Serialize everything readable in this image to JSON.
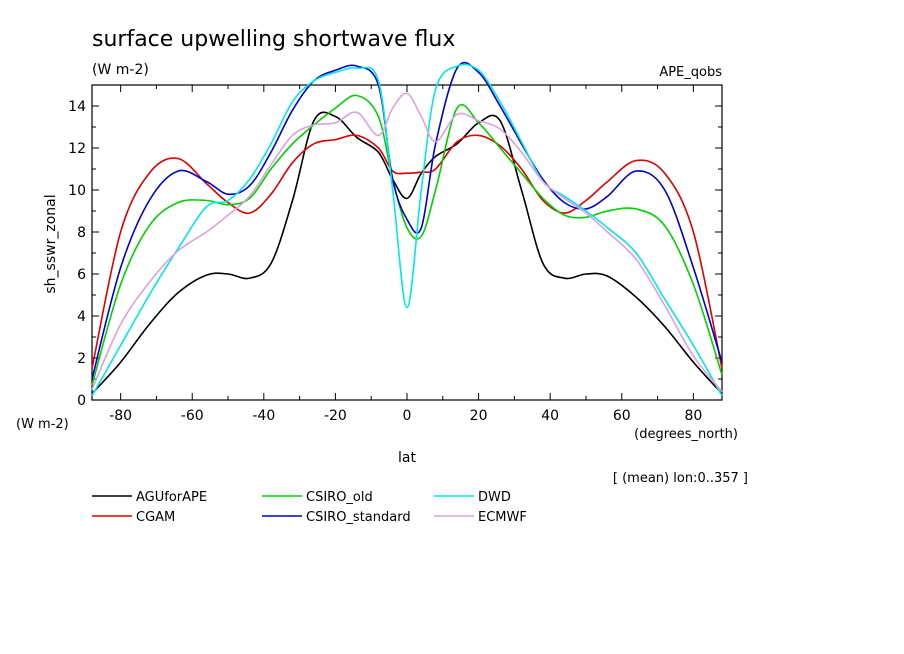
{
  "chart_data": {
    "type": "line",
    "title": "surface upwelling shortwave flux",
    "units": "(W m-2)",
    "run_label": "APE_qobs",
    "ylabel": "sh_sswr_zonal",
    "y_units": "(W m-2)",
    "xlabel": "lat",
    "x_units": "(degrees_north)",
    "footnote": "[ (mean) lon:0..357 ]",
    "xlim": [
      -88,
      88
    ],
    "ylim": [
      0,
      15
    ],
    "xticks": [
      -80,
      -60,
      -40,
      -20,
      0,
      20,
      40,
      60,
      80
    ],
    "yticks": [
      0,
      2,
      4,
      6,
      8,
      10,
      12,
      14
    ],
    "x": [
      -88,
      -80,
      -72,
      -64,
      -56,
      -50,
      -44,
      -38,
      -32,
      -26,
      -20,
      -14,
      -8,
      -4,
      0,
      4,
      8,
      14,
      20,
      26,
      32,
      38,
      44,
      50,
      56,
      64,
      72,
      80,
      88
    ],
    "series": [
      {
        "name": "AGUforAPE",
        "color": "#000000",
        "values": [
          0.3,
          1.8,
          3.6,
          5.1,
          5.95,
          6.0,
          5.8,
          6.5,
          9.5,
          13.3,
          13.5,
          12.5,
          11.8,
          10.5,
          9.6,
          10.8,
          11.6,
          12.2,
          13.2,
          13.3,
          10.0,
          6.5,
          5.8,
          6.0,
          5.9,
          4.9,
          3.5,
          1.8,
          0.3
        ]
      },
      {
        "name": "CGAM",
        "color": "#e00000",
        "values": [
          1.5,
          8.0,
          10.8,
          11.5,
          10.3,
          9.4,
          8.9,
          9.8,
          11.3,
          12.2,
          12.4,
          12.6,
          12.0,
          10.9,
          10.8,
          10.85,
          11.0,
          12.3,
          12.6,
          12.1,
          11.0,
          9.5,
          8.9,
          9.5,
          10.4,
          11.4,
          10.8,
          8.0,
          1.5
        ]
      },
      {
        "name": "CSIRO_old",
        "color": "#00d000",
        "values": [
          0.7,
          5.5,
          8.3,
          9.4,
          9.5,
          9.3,
          9.6,
          11.0,
          12.2,
          13.1,
          13.9,
          14.5,
          13.5,
          10.5,
          8.2,
          7.8,
          10.0,
          13.9,
          13.2,
          12.0,
          10.8,
          9.6,
          8.8,
          8.7,
          9.0,
          9.1,
          8.3,
          5.5,
          1.2
        ]
      },
      {
        "name": "CSIRO_standard",
        "color": "#0000cc",
        "values": [
          1.0,
          6.3,
          9.5,
          10.9,
          10.4,
          9.8,
          10.2,
          11.8,
          13.8,
          15.2,
          15.7,
          15.9,
          15.0,
          10.5,
          8.6,
          8.2,
          12.2,
          15.8,
          15.6,
          14.0,
          12.2,
          10.5,
          9.4,
          9.1,
          9.7,
          10.9,
          10.0,
          6.3,
          1.8
        ]
      },
      {
        "name": "DWD",
        "color": "#00e8e8",
        "values": [
          0.2,
          2.6,
          5.0,
          7.2,
          9.2,
          9.5,
          10.5,
          12.2,
          14.2,
          15.2,
          15.6,
          15.8,
          15.2,
          10.0,
          4.4,
          10.0,
          14.8,
          15.9,
          15.7,
          14.2,
          12.3,
          10.4,
          9.7,
          9.0,
          8.2,
          7.0,
          4.8,
          2.6,
          0.2
        ]
      },
      {
        "name": "ECMWF",
        "color": "#dda0dd",
        "values": [
          0.5,
          3.6,
          5.6,
          7.1,
          8.0,
          8.8,
          9.7,
          11.2,
          12.6,
          13.1,
          13.2,
          13.7,
          12.6,
          13.9,
          14.6,
          13.5,
          12.3,
          13.6,
          13.3,
          12.9,
          11.8,
          10.4,
          9.6,
          8.9,
          8.0,
          6.7,
          4.5,
          2.1,
          0.4
        ]
      }
    ]
  }
}
